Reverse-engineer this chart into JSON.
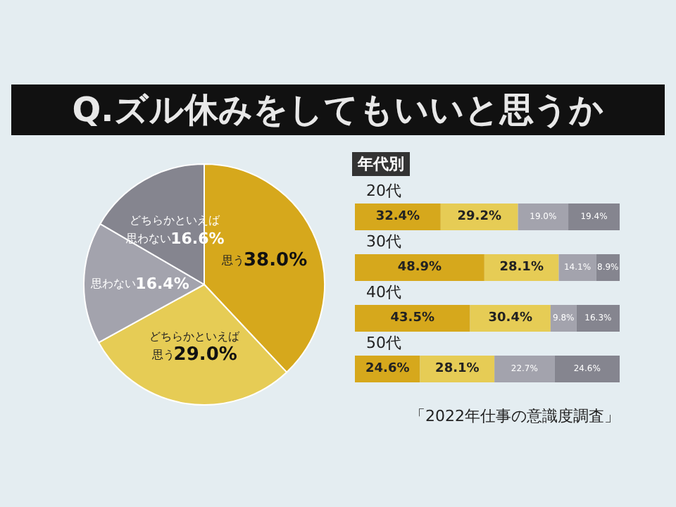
{
  "chart_data": [
    {
      "type": "pie",
      "title": "Q.ズル休みをしてもいいと思うか",
      "categories": [
        "思う",
        "どちらかといえば思う",
        "思わない",
        "どちらかといえば思わない"
      ],
      "values": [
        38.0,
        29.0,
        16.4,
        16.6
      ],
      "value_labels": [
        "38.0%",
        "29.0%",
        "16.4%",
        "16.6%"
      ],
      "colors": [
        "#d6a81c",
        "#e6cc55",
        "#a3a3ad",
        "#85858f"
      ],
      "legend": false
    },
    {
      "type": "bar",
      "orientation": "horizontal",
      "stacked": true,
      "title": "年代別",
      "categories": [
        "20代",
        "30代",
        "40代",
        "50代"
      ],
      "legend": false,
      "tick_labels": "y",
      "annotations": [
        "「2022年仕事の意識度調査」"
      ],
      "series": [
        {
          "color": "#d6a81c",
          "values": [
            32.4,
            48.9,
            43.5,
            24.6
          ],
          "value_labels": [
            "32.4%",
            "48.9%",
            "43.5%",
            "24.6%"
          ]
        },
        {
          "color": "#e6cc55",
          "values": [
            29.2,
            28.1,
            30.4,
            28.1
          ],
          "value_labels": [
            "29.2%",
            "28.1%",
            "30.4%",
            "28.1%"
          ]
        },
        {
          "color": "#a3a3ad",
          "values": [
            19.0,
            14.1,
            9.8,
            22.7
          ],
          "value_labels": [
            "19.0%",
            "14.1%",
            "9.8%",
            "22.7%"
          ]
        },
        {
          "color": "#85858f",
          "values": [
            19.4,
            8.9,
            16.3,
            24.6
          ],
          "value_labels": [
            "19.4%",
            "8.9%",
            "16.3%",
            "24.6%"
          ]
        }
      ]
    }
  ]
}
